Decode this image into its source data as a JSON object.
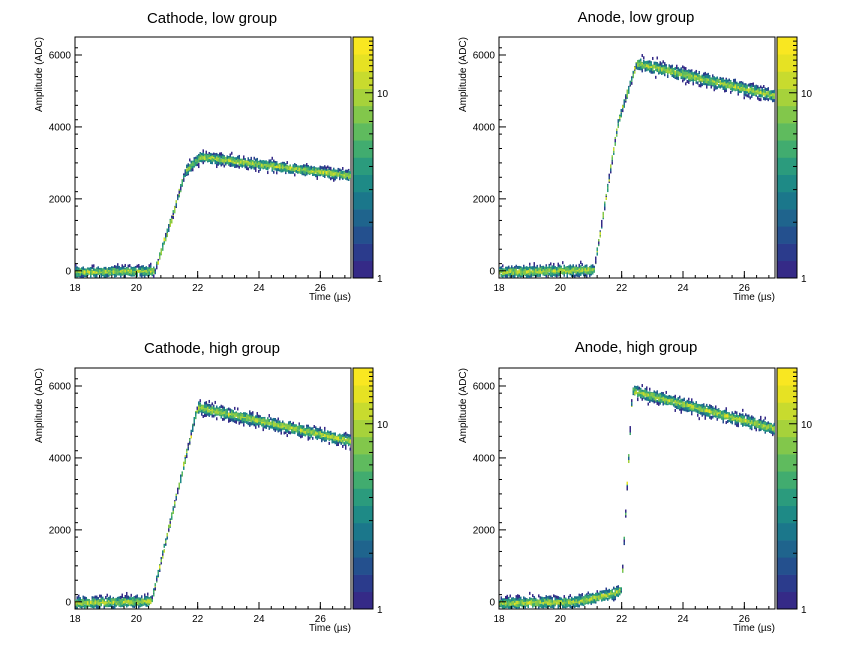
{
  "palette": [
    "#352a87",
    "#2b3b8c",
    "#24508e",
    "#1f648d",
    "#1b778b",
    "#1e8a86",
    "#2b9b7d",
    "#41ac6f",
    "#5fbb5e",
    "#82c74b",
    "#a6d23b",
    "#c8db2e",
    "#e6e223",
    "#f9e721"
  ],
  "chart_data": [
    {
      "type": "heatmap",
      "title": "Cathode, low group",
      "xlabel": "Time (µs)",
      "ylabel": "Amplitude (ADC)",
      "xlim": [
        18,
        27
      ],
      "ylim": [
        -200,
        6500
      ],
      "xticks": [
        18,
        20,
        22,
        24,
        26
      ],
      "yticks": [
        0,
        2000,
        4000,
        6000
      ],
      "zlim": [
        1,
        20
      ],
      "zticks": [
        1,
        10
      ],
      "zscale": "log",
      "waveform": [
        [
          18,
          0
        ],
        [
          20.6,
          30
        ],
        [
          21.2,
          1600
        ],
        [
          21.6,
          2800
        ],
        [
          22.1,
          3200
        ],
        [
          27,
          2680
        ]
      ],
      "spread": 70
    },
    {
      "type": "heatmap",
      "title": "Anode, low group",
      "xlabel": "Time (µs)",
      "ylabel": "Amplitude (ADC)",
      "xlim": [
        18,
        27
      ],
      "ylim": [
        -200,
        6500
      ],
      "xticks": [
        18,
        20,
        22,
        24,
        26
      ],
      "yticks": [
        0,
        2000,
        4000,
        6000
      ],
      "zlim": [
        1,
        20
      ],
      "zticks": [
        1,
        10
      ],
      "zscale": "log",
      "waveform": [
        [
          18,
          0
        ],
        [
          21.1,
          60
        ],
        [
          21.4,
          1600
        ],
        [
          21.9,
          4200
        ],
        [
          22.5,
          5800
        ],
        [
          27,
          4900
        ]
      ],
      "spread": 80
    },
    {
      "type": "heatmap",
      "title": "Cathode, high group",
      "xlabel": "Time (µs)",
      "ylabel": "Amplitude (ADC)",
      "xlim": [
        18,
        27
      ],
      "ylim": [
        -200,
        6500
      ],
      "xticks": [
        18,
        20,
        22,
        24,
        26
      ],
      "yticks": [
        0,
        2000,
        4000,
        6000
      ],
      "zlim": [
        1,
        20
      ],
      "zticks": [
        1,
        10
      ],
      "zscale": "log",
      "waveform": [
        [
          18,
          0
        ],
        [
          20.5,
          50
        ],
        [
          22.0,
          5450
        ],
        [
          27,
          4500
        ]
      ],
      "spread": 80
    },
    {
      "type": "heatmap",
      "title": "Anode, high group",
      "xlabel": "Time (µs)",
      "ylabel": "Amplitude (ADC)",
      "xlim": [
        18,
        27
      ],
      "ylim": [
        -200,
        6500
      ],
      "xticks": [
        18,
        20,
        22,
        24,
        26
      ],
      "yticks": [
        0,
        2000,
        4000,
        6000
      ],
      "zlim": [
        1,
        20
      ],
      "zticks": [
        1,
        10
      ],
      "zscale": "log",
      "waveform": [
        [
          18,
          0
        ],
        [
          20.5,
          30
        ],
        [
          21.8,
          280
        ],
        [
          22.0,
          400
        ],
        [
          22.35,
          5900
        ],
        [
          27,
          4850
        ]
      ],
      "spread": 80
    }
  ]
}
